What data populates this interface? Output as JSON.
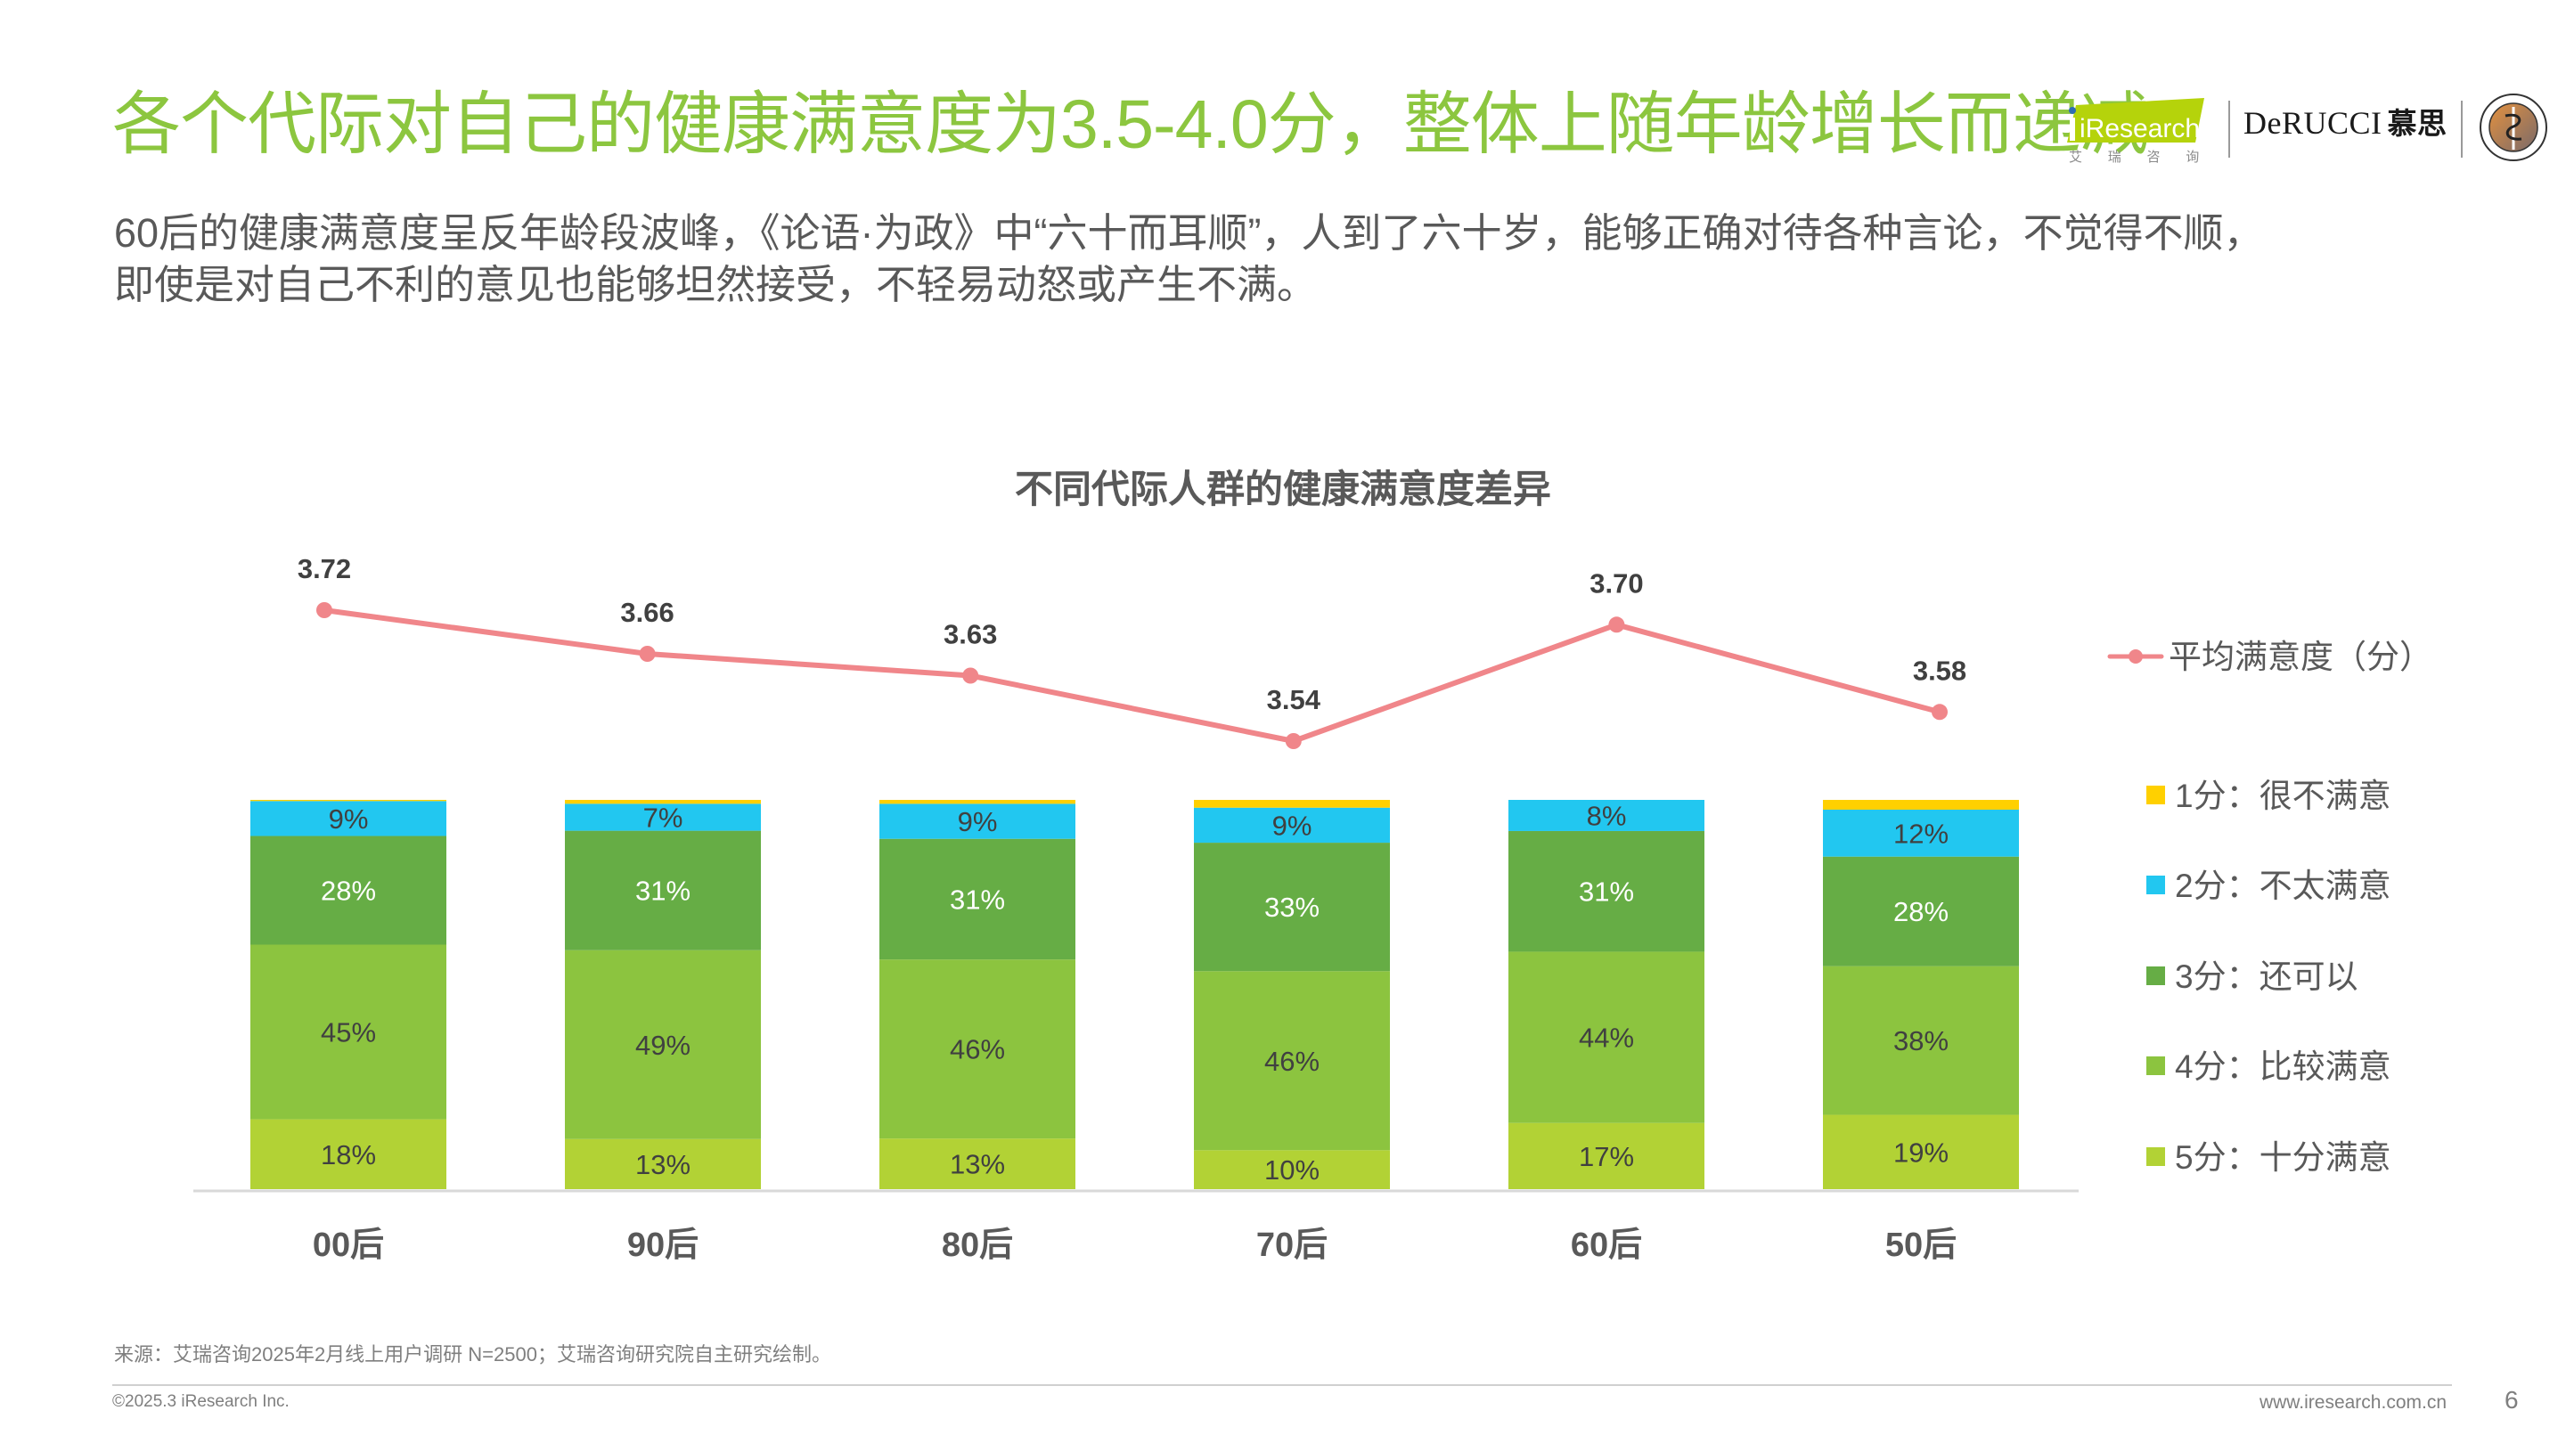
{
  "header": {
    "title": "各个代际对自己的健康满意度为3.5-4.0分，整体上随年龄增长而递减",
    "subtitle_lines": [
      "60后的健康满意度呈反年龄段波峰，《论语·为政》中“六十而耳顺”，人到了六十岁，能够正确对待各种言论，不觉得不顺，",
      "即使是对自己不利的意见也能够坦然接受，不轻易动怒或产生不满。"
    ]
  },
  "logos": {
    "iresearch": {
      "name": "iResearch",
      "cn": "艾 瑞 咨 询"
    },
    "derucci": {
      "name": "DeRUCCI",
      "cn": "慕思"
    },
    "seal": {
      "name": "Chinese Sleep Research Society",
      "cn": "中国睡眠研究会"
    }
  },
  "colors": {
    "title": "#8cc63f",
    "score_1": "#ffd000",
    "score_2": "#22c7f0",
    "score_3": "#66ad45",
    "score_4": "#8cc43f",
    "score_5": "#b2d235",
    "avg_line": "#f0868a",
    "text": "#595959"
  },
  "chart_data": {
    "type": "bar",
    "stacked": true,
    "combo_line": true,
    "title": "不同代际人群的健康满意度差异",
    "xlabel": "",
    "ylabel": "",
    "ylim": [
      0,
      100
    ],
    "grid": false,
    "legend_position": "right",
    "categories": [
      "00后",
      "90后",
      "80后",
      "70后",
      "60后",
      "50后"
    ],
    "series": [
      {
        "name": "5分：十分满意",
        "unit": "%",
        "values": [
          18,
          13,
          13,
          10,
          17,
          19
        ],
        "labels": [
          "18%",
          "13%",
          "13%",
          "10%",
          "17%",
          "19%"
        ]
      },
      {
        "name": "4分：比较满意",
        "unit": "%",
        "values": [
          45,
          49,
          46,
          46,
          44,
          38
        ],
        "labels": [
          "45%",
          "49%",
          "46%",
          "46%",
          "44%",
          "38%"
        ]
      },
      {
        "name": "3分：还可以",
        "unit": "%",
        "values": [
          28,
          31,
          31,
          33,
          31,
          28
        ],
        "labels": [
          "28%",
          "31%",
          "31%",
          "33%",
          "31%",
          "28%"
        ]
      },
      {
        "name": "2分：不太满意",
        "unit": "%",
        "values": [
          9,
          7,
          9,
          9,
          8,
          12
        ],
        "labels": [
          "9%",
          "7%",
          "9%",
          "9%",
          "8%",
          "12%"
        ]
      },
      {
        "name": "1分：很不满意",
        "unit": "%",
        "values": [
          0.3,
          1,
          1,
          2,
          0,
          2.5
        ],
        "labels": [
          "",
          "",
          "",
          "",
          "",
          ""
        ]
      }
    ],
    "line_series": {
      "name": "平均满意度（分）",
      "values": [
        3.72,
        3.66,
        3.63,
        3.54,
        3.7,
        3.58
      ],
      "labels": [
        "3.72",
        "3.66",
        "3.63",
        "3.54",
        "3.70",
        "3.58"
      ]
    },
    "legend": [
      {
        "label": "平均满意度（分）",
        "type": "line"
      },
      {
        "label": "1分：很不满意",
        "type": "square"
      },
      {
        "label": "2分：不太满意",
        "type": "square"
      },
      {
        "label": "3分：还可以",
        "type": "square"
      },
      {
        "label": "4分：比较满意",
        "type": "square"
      },
      {
        "label": "5分：十分满意",
        "type": "square"
      }
    ]
  },
  "footer": {
    "source": "来源：艾瑞咨询2025年2月线上用户调研 N=2500；艾瑞咨询研究院自主研究绘制。",
    "copyright": "©2025.3 iResearch Inc.",
    "website": "www.iresearch.com.cn",
    "page_number": "6"
  }
}
